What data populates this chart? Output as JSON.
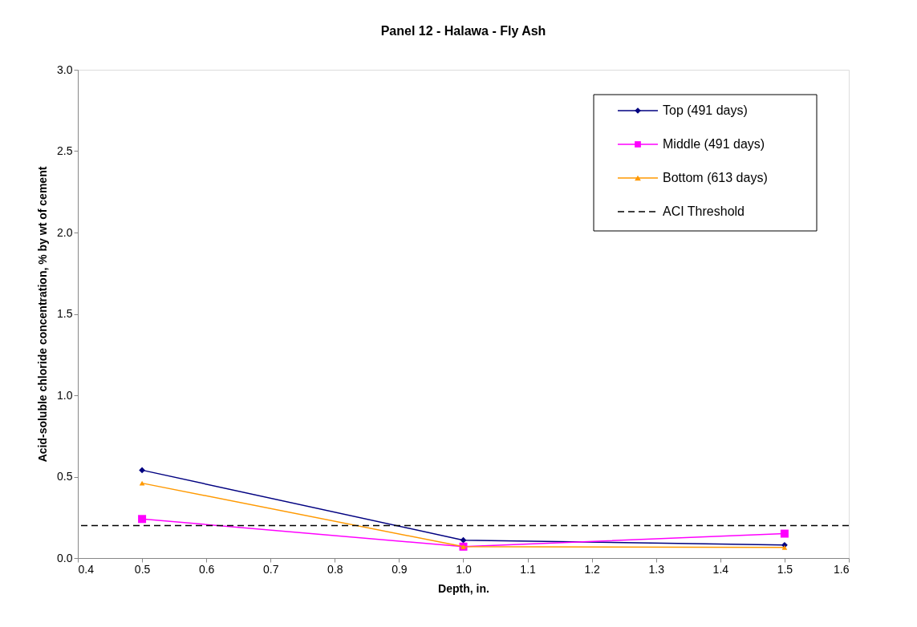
{
  "chart_data": {
    "type": "line",
    "title": "Panel 12 - Halawa - Fly Ash",
    "xlabel": "Depth, in.",
    "ylabel": "Acid-soluble chloride concentration, % by wt of cement",
    "x": [
      0.5,
      1.0,
      1.5
    ],
    "series": [
      {
        "name": "Top (491 days)",
        "color": "#000080",
        "marker": "diamond",
        "values": [
          0.54,
          0.11,
          0.08
        ]
      },
      {
        "name": "Middle (491 days)",
        "color": "#ff00ff",
        "marker": "square",
        "values": [
          0.24,
          0.07,
          0.15
        ]
      },
      {
        "name": "Bottom (613 days)",
        "color": "#ff9900",
        "marker": "triangle",
        "values": [
          0.46,
          0.07,
          0.065
        ]
      }
    ],
    "ref_lines": [
      {
        "axis": "y",
        "value": 0.2,
        "label": "ACI Threshold",
        "color": "#000000",
        "line_style": "dashed"
      }
    ],
    "xlim": [
      0.4,
      1.6
    ],
    "xticks": [
      {
        "value": 0.4,
        "label": "0.4"
      },
      {
        "value": 0.5,
        "label": "0.5"
      },
      {
        "value": 0.6,
        "label": "0.6"
      },
      {
        "value": 0.7,
        "label": "0.7"
      },
      {
        "value": 0.8,
        "label": "0.8"
      },
      {
        "value": 0.9,
        "label": "0.9"
      },
      {
        "value": 1.0,
        "label": "1.0"
      },
      {
        "value": 1.1,
        "label": "1.1"
      },
      {
        "value": 1.2,
        "label": "1.2"
      },
      {
        "value": 1.3,
        "label": "1.3"
      },
      {
        "value": 1.4,
        "label": "1.4"
      },
      {
        "value": 1.5,
        "label": "1.5"
      },
      {
        "value": 1.6,
        "label": "1.6"
      }
    ],
    "ylim": [
      0,
      3.0
    ],
    "yticks": [
      {
        "value": 0,
        "label": "0.0"
      },
      {
        "value": 0.5,
        "label": "0.5"
      },
      {
        "value": 1.0,
        "label": "1.0"
      },
      {
        "value": 1.5,
        "label": "1.5"
      },
      {
        "value": 2.0,
        "label": "2.0"
      },
      {
        "value": 2.5,
        "label": "2.5"
      },
      {
        "value": 3.0,
        "label": "3.0"
      }
    ],
    "grid": false,
    "legend": "top right",
    "line_style": "solid"
  }
}
